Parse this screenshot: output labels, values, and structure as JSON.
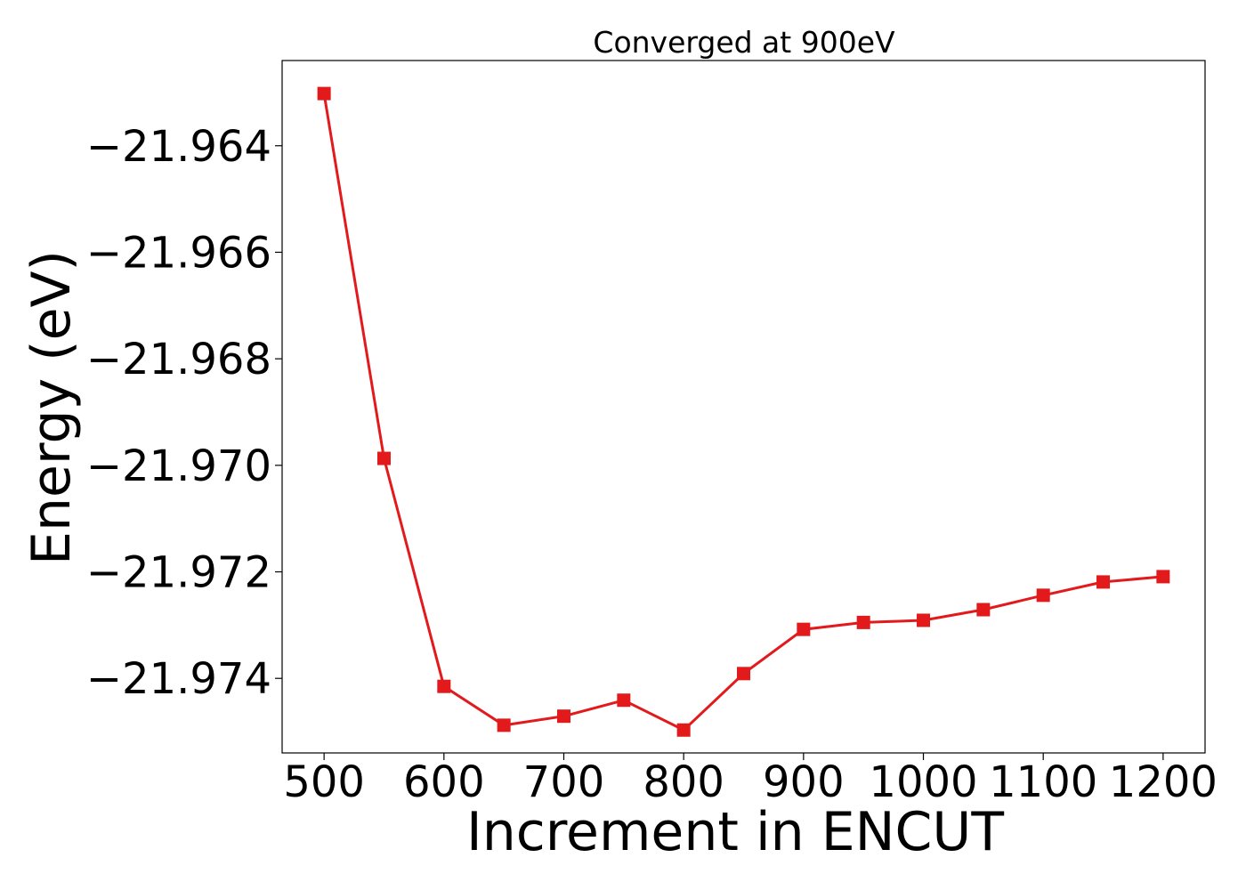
{
  "chart_data": {
    "type": "line",
    "title": "Converged at 900eV",
    "xlabel": "Increment in ENCUT",
    "ylabel": "Energy (eV)",
    "xlim": [
      465,
      1235
    ],
    "ylim": [
      -21.9754,
      -21.9624
    ],
    "x_ticks": [
      500,
      600,
      700,
      800,
      900,
      1000,
      1100,
      1200
    ],
    "x_tick_labels": [
      "500",
      "600",
      "700",
      "800",
      "900",
      "1000",
      "1100",
      "1200"
    ],
    "y_ticks": [
      -21.964,
      -21.966,
      -21.968,
      -21.97,
      -21.972,
      -21.974
    ],
    "y_tick_labels": [
      "−21.964",
      "−21.966",
      "−21.968",
      "−21.970",
      "−21.972",
      "−21.974"
    ],
    "grid": false,
    "series": [
      {
        "color": "#e31a1c",
        "marker": "square",
        "x": [
          500,
          550,
          600,
          650,
          700,
          750,
          800,
          850,
          900,
          950,
          1000,
          1050,
          1100,
          1150,
          1200
        ],
        "y": [
          -21.96302,
          -21.96987,
          -21.97415,
          -21.97488,
          -21.97471,
          -21.97441,
          -21.97497,
          -21.97391,
          -21.97308,
          -21.97295,
          -21.97291,
          -21.97271,
          -21.97244,
          -21.97219,
          -21.97209
        ]
      }
    ]
  }
}
